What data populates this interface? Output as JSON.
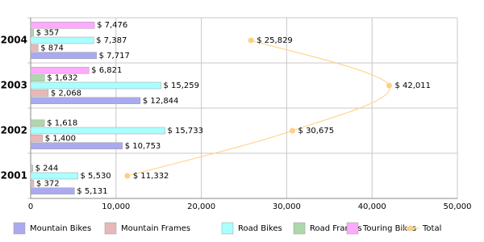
{
  "chart_data": {
    "type": "bar",
    "categories": [
      "2001",
      "2002",
      "2003",
      "2004"
    ],
    "series": [
      {
        "name": "Mountain Bikes",
        "color": "#aaaaf0",
        "values": [
          5131,
          10753,
          12844,
          7717
        ],
        "value_labels": [
          "$ 5,131",
          "$ 10,753",
          "$ 12,844",
          "$ 7,717"
        ]
      },
      {
        "name": "Mountain Frames",
        "color": "#e8b8b8",
        "values": [
          372,
          1400,
          2068,
          874
        ],
        "value_labels": [
          "$ 372",
          "$ 1,400",
          "$ 2,068",
          "$ 874"
        ]
      },
      {
        "name": "Road Bikes",
        "color": "#aaffff",
        "values": [
          5530,
          15733,
          15259,
          7387
        ],
        "value_labels": [
          "$ 5,530",
          "$ 15,733",
          "$ 15,259",
          "$ 7,387"
        ]
      },
      {
        "name": "Road Frames",
        "color": "#acd8ac",
        "values": [
          244,
          1618,
          1632,
          357
        ],
        "value_labels": [
          "$ 244",
          "$ 1,618",
          "$ 1,632",
          "$ 357"
        ]
      },
      {
        "name": "Touring Bikes",
        "color": "#ffaaff",
        "values": [
          null,
          null,
          6821,
          7476
        ],
        "value_labels": [
          null,
          null,
          "$ 6,821",
          "$ 7,476"
        ]
      },
      {
        "name": "Total",
        "type": "line",
        "color": "#ffd080",
        "values": [
          11332,
          30675,
          42011,
          25829
        ],
        "value_labels": [
          "$ 11,332",
          "$ 30,675",
          "$ 42,011",
          "$ 25,829"
        ]
      }
    ],
    "xlim": [
      0,
      50000
    ],
    "xticks": [
      0,
      {
        "value": 10000,
        "label": "10,000"
      },
      {
        "value": 20000,
        "label": "20,000"
      },
      {
        "value": 30000,
        "label": "30,000"
      },
      {
        "value": 40000,
        "label": "40,000"
      },
      {
        "value": 50000,
        "label": "50,000"
      }
    ],
    "grid": true
  }
}
